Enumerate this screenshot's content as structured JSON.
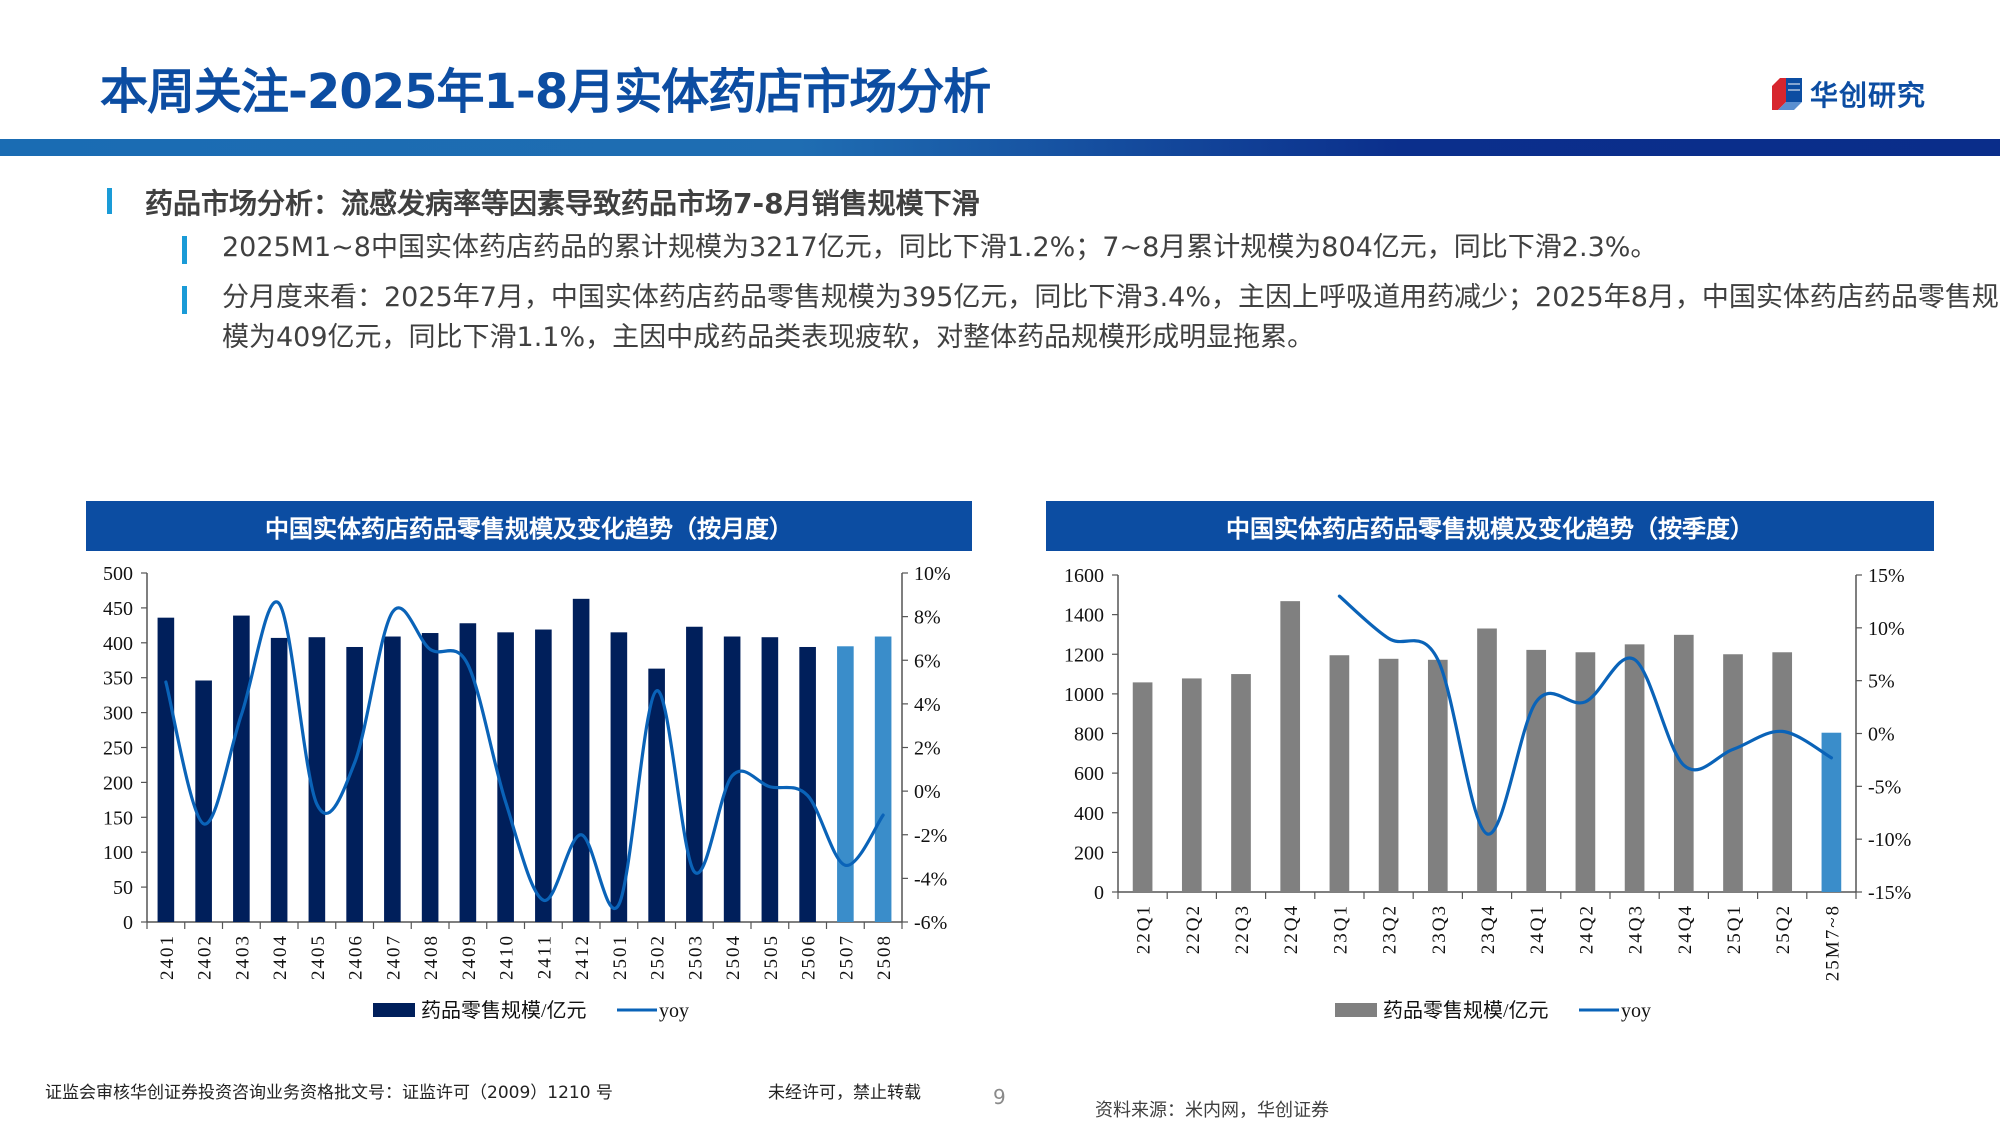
{
  "header": {
    "title": "本周关注-2025年1-8月实体药店市场分析",
    "logo_text": "华创研究"
  },
  "section": {
    "heading": "药品市场分析：流感发病率等因素导致药品市场7-8月销售规模下滑",
    "bullets": [
      "2025M1~8中国实体药店药品的累计规模为3217亿元，同比下滑1.2%；7~8月累计规模为804亿元，同比下滑2.3%。",
      "分月度来看：2025年7月，中国实体药店药品零售规模为395亿元，同比下滑3.4%，主因上呼吸道用药减少；2025年8月，中国实体药店药品零售规模为409亿元，同比下滑1.1%，主因中成药品类表现疲软，对整体药品规模形成明显拖累。"
    ]
  },
  "colors": {
    "brand_blue": "#0c4da2",
    "bar_navy": "#001f5b",
    "bar_gray": "#808080",
    "bar_highlight": "#3a8dca",
    "line_blue": "#0a63b8",
    "marker_cyan": "#1a9bd7"
  },
  "chart_data": [
    {
      "type": "bar",
      "title": "中国实体药店药品零售规模及变化趋势（按月度）",
      "categories": [
        "2401",
        "2402",
        "2403",
        "2404",
        "2405",
        "2406",
        "2407",
        "2408",
        "2409",
        "2410",
        "2411",
        "2412",
        "2501",
        "2502",
        "2503",
        "2504",
        "2505",
        "2506",
        "2507",
        "2508"
      ],
      "series": [
        {
          "name": "药品零售规模/亿元",
          "type": "bar",
          "axis": "left",
          "values": [
            436,
            346,
            439,
            407,
            408,
            394,
            409,
            414,
            428,
            415,
            419,
            463,
            415,
            363,
            423,
            409,
            408,
            394,
            395,
            409
          ],
          "highlight_indices": [
            18,
            19
          ]
        },
        {
          "name": "yoy",
          "type": "line",
          "axis": "right",
          "values": [
            5.0,
            -1.5,
            3.5,
            8.6,
            -0.6,
            1.3,
            8.2,
            6.5,
            5.8,
            -0.5,
            -5.0,
            -2.0,
            -5.2,
            4.6,
            -3.7,
            0.7,
            0.2,
            -0.2,
            -3.4,
            -1.1
          ]
        }
      ],
      "ylim_left": [
        0,
        500
      ],
      "yticks_left": [
        0,
        50,
        100,
        150,
        200,
        250,
        300,
        350,
        400,
        450,
        500
      ],
      "ylim_right": [
        -6,
        10
      ],
      "yticks_right": [
        "-6%",
        "-4%",
        "-2%",
        "0%",
        "2%",
        "4%",
        "6%",
        "8%",
        "10%"
      ],
      "legend": [
        "药品零售规模/亿元",
        "yoy"
      ],
      "legend_position": "bottom"
    },
    {
      "type": "bar",
      "title": "中国实体药店药品零售规模及变化趋势（按季度）",
      "categories": [
        "22Q1",
        "22Q2",
        "22Q3",
        "22Q4",
        "23Q1",
        "23Q2",
        "23Q3",
        "23Q4",
        "24Q1",
        "24Q2",
        "24Q3",
        "24Q4",
        "25Q1",
        "25Q2",
        "25M7~8"
      ],
      "series": [
        {
          "name": "药品零售规模/亿元",
          "type": "bar",
          "axis": "left",
          "values": [
            1058,
            1078,
            1100,
            1468,
            1195,
            1177,
            1172,
            1330,
            1222,
            1210,
            1250,
            1298,
            1200,
            1210,
            804
          ],
          "highlight_indices": [
            14
          ]
        },
        {
          "name": "yoy",
          "type": "line",
          "axis": "right",
          "values": [
            null,
            null,
            null,
            null,
            13.0,
            9.0,
            7.0,
            -9.5,
            3.0,
            3.0,
            7.0,
            -3.0,
            -1.5,
            0.2,
            -2.3
          ]
        }
      ],
      "ylim_left": [
        0,
        1600
      ],
      "yticks_left": [
        0,
        200,
        400,
        600,
        800,
        1000,
        1200,
        1400,
        1600
      ],
      "ylim_right": [
        -15,
        15
      ],
      "yticks_right": [
        "-15%",
        "-10%",
        "-5%",
        "0%",
        "5%",
        "10%",
        "15%"
      ],
      "legend": [
        "药品零售规模/亿元",
        "yoy"
      ],
      "legend_position": "bottom"
    }
  ],
  "footer": {
    "license": "证监会审核华创证券投资咨询业务资格批文号：证监许可（2009）1210 号",
    "copyright": "未经许可，禁止转载",
    "page_number": "9",
    "source": "资料来源：米内网，华创证券"
  }
}
